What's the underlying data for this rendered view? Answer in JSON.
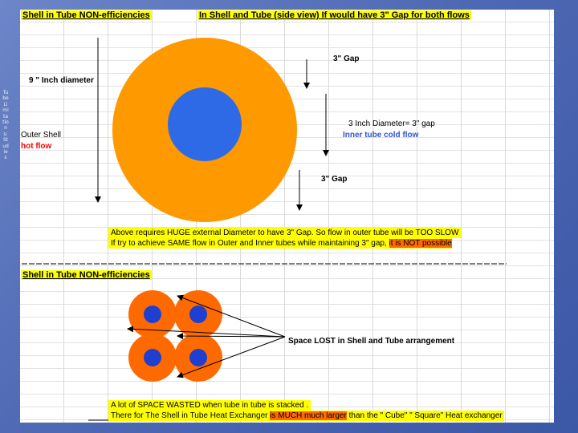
{
  "side_strip": "Tube Limitations: Studies",
  "top": {
    "title_left": "Shell in Tube  NON-efficiencies",
    "title_right": "In Shell and Tube (side view) If would have 3\" Gap for both flows",
    "gap_label_1": "3\" Gap",
    "gap_label_2": "3\" Gap",
    "diameter_9": "9 \" Inch diameter",
    "diameter_3": "3 Inch Diameter= 3\" gap",
    "inner_tube": "Inner tube cold flow",
    "outer_shell": "Outer Shell",
    "hot_flow": "hot flow",
    "note_line1": "Above requires HUGE external Diameter to have 3\" Gap. So flow in outer tube will be TOO SLOW",
    "note_line2": "If try to achieve SAME flow in Outer and Inner tubes while maintaining 3\" gap,",
    "note_line2_highlight": "it is NOT possible"
  },
  "bottom": {
    "title": "Shell in Tube  NON-efficiencies",
    "space_lost": "Space LOST in Shell and Tube arrangement",
    "note_line1": "A lot of SPACE WASTED when tube in tube is stacked .",
    "note_line2_a": "There for The Shell in Tube Heat Exchanger",
    "note_line2_b": "is MUCH much larger",
    "note_line2_c": "than the \" Cube\" \" Square\" Heat exchanger"
  },
  "colors": {
    "orange_outer": "#ff9900",
    "orange_bottom": "#ff6a00",
    "blue_inner": "#2f6ae6",
    "blue_bottom": "#1f3fd0",
    "highlight": "#ffff00"
  }
}
